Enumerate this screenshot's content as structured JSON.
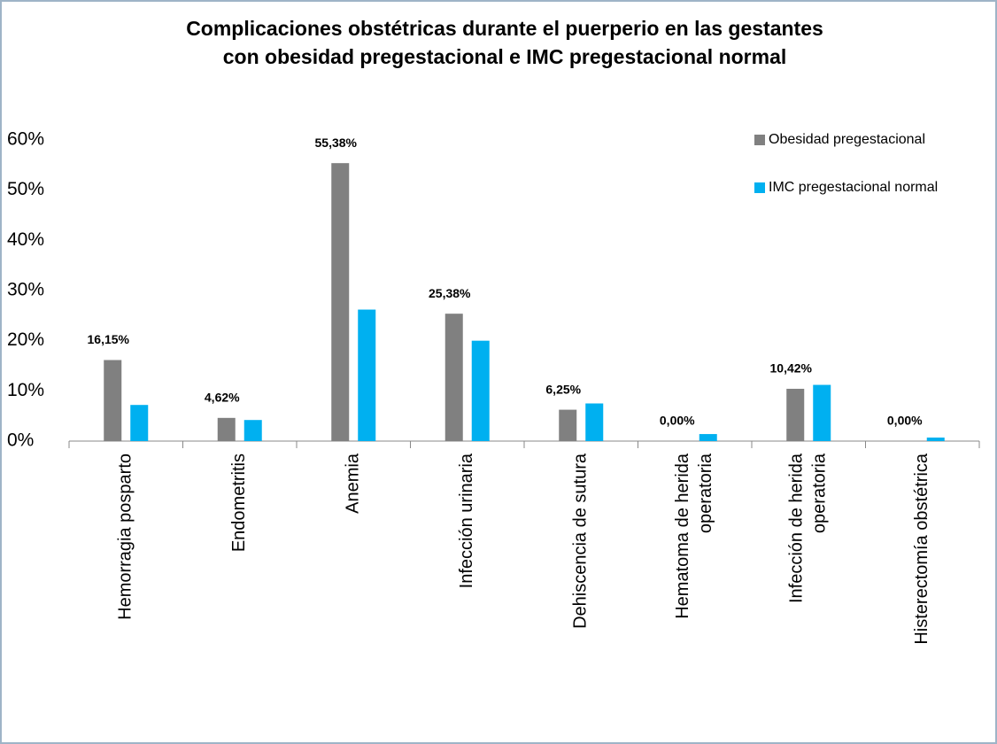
{
  "chart_data": {
    "type": "bar",
    "title": "Complicaciones obstétricas durante el puerperio en las gestantes con obesidad pregestacional e IMC pregestacional normal",
    "categories": [
      "Hemorragia posparto",
      "Endometritis",
      "Anemia",
      "Infección urinaria",
      "Dehiscencia de sutura",
      "Hematoma de herida operatoria",
      "Infección de herida operatoria",
      "Histerectomía obstétrica"
    ],
    "series": [
      {
        "name": "Obesidad pregestacional",
        "color": "#808080",
        "values": [
          16.15,
          4.62,
          55.38,
          25.38,
          6.25,
          0,
          10.42,
          0
        ],
        "value_labels": [
          "16,15%",
          "4,62%",
          "55,38%",
          "25,38%",
          "6,25%",
          "0,00%",
          "10,42%",
          "0,00%"
        ]
      },
      {
        "name": "IMC pregestacional normal",
        "color": "#00b0f0",
        "values": [
          7.2,
          4.2,
          26.2,
          20,
          7.5,
          1.4,
          11.2,
          0.7
        ]
      }
    ],
    "ylim": [
      0,
      60
    ],
    "yticks": [
      {
        "value": 0,
        "label": "0%"
      },
      {
        "value": 10,
        "label": "10%"
      },
      {
        "value": 20,
        "label": "20%"
      },
      {
        "value": 30,
        "label": "30%"
      },
      {
        "value": 40,
        "label": "40%"
      },
      {
        "value": 50,
        "label": "50%"
      },
      {
        "value": 60,
        "label": "60%"
      }
    ],
    "legend": "top-right"
  }
}
